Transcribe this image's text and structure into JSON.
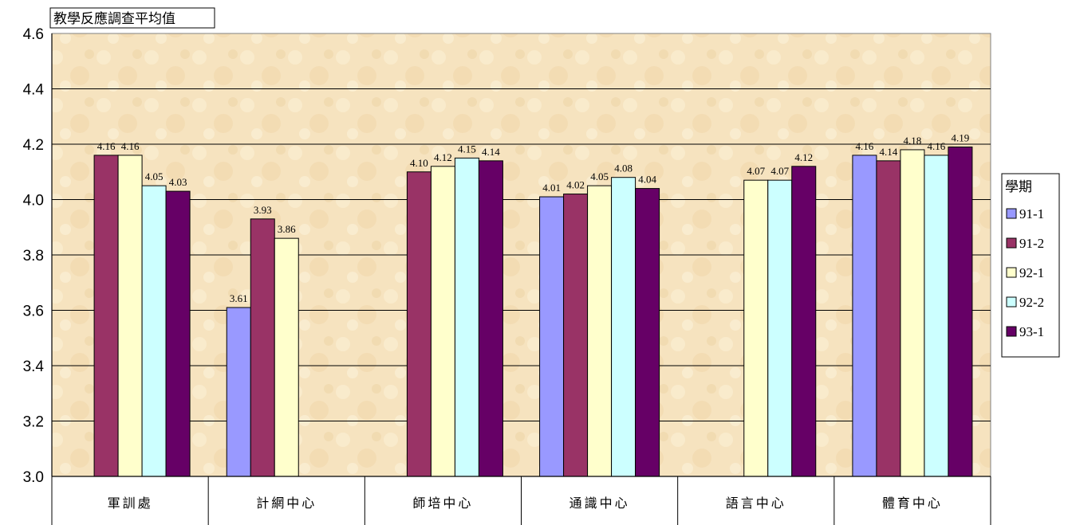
{
  "chart_data": {
    "type": "bar",
    "title": "教學反應調查平均值",
    "categories": [
      "軍訓處",
      "計網中心",
      "師培中心",
      "通識中心",
      "語言中心",
      "體育中心"
    ],
    "ylim": [
      3.0,
      4.6
    ],
    "yticks": [
      "3.0",
      "3.2",
      "3.4",
      "3.6",
      "3.8",
      "4.0",
      "4.2",
      "4.4",
      "4.6"
    ],
    "grid": true,
    "legend_title": "學期",
    "legend_position": "right",
    "series": [
      {
        "name": "91-1",
        "color": "#9999ff",
        "values": [
          null,
          3.61,
          null,
          4.01,
          null,
          4.16
        ],
        "labels": [
          "",
          "3.61",
          "",
          "4.01",
          "",
          "4.16"
        ]
      },
      {
        "name": "91-2",
        "color": "#993366",
        "values": [
          4.16,
          3.93,
          4.1,
          4.02,
          null,
          4.14
        ],
        "labels": [
          "4.16",
          "3.93",
          "4.10",
          "4.02",
          "",
          "4.14"
        ]
      },
      {
        "name": "92-1",
        "color": "#ffffcc",
        "values": [
          4.16,
          3.86,
          4.12,
          4.05,
          4.07,
          4.18
        ],
        "labels": [
          "4.16",
          "3.86",
          "4.12",
          "4.05",
          "4.07",
          "4.18"
        ]
      },
      {
        "name": "92-2",
        "color": "#ccffff",
        "values": [
          4.05,
          null,
          4.15,
          4.08,
          4.07,
          4.16
        ],
        "labels": [
          "4.05",
          "",
          "4.15",
          "4.08",
          "4.07",
          "4.16"
        ]
      },
      {
        "name": "93-1",
        "color": "#660066",
        "values": [
          4.03,
          null,
          4.14,
          4.04,
          4.12,
          4.19
        ],
        "labels": [
          "4.03",
          "",
          "4.14",
          "4.04",
          "4.12",
          "4.19"
        ]
      }
    ]
  }
}
